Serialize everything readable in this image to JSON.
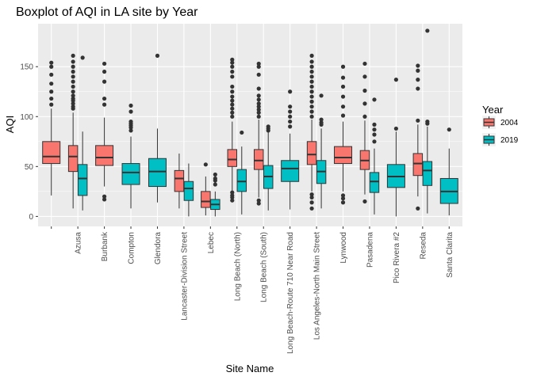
{
  "chart_data": {
    "type": "boxplot",
    "title": "Boxplot of AQI in LA site by Year",
    "xlabel": "Site Name",
    "ylabel": "AQI",
    "ylim": [
      -10,
      193
    ],
    "yticks": [
      0,
      50,
      100,
      150
    ],
    "grid": true,
    "legend": {
      "title": "Year",
      "position": "right"
    },
    "colors": {
      "2004": "#F8766D",
      "2019": "#00BFC4",
      "panel": "#EBEBEB",
      "grid": "#FFFFFF"
    },
    "categories": [
      "",
      "Azusa",
      "Burbank",
      "Compton",
      "Glendora",
      "Lancaster-Division Street",
      "Lebec",
      "Long Beach (North)",
      "Long Beach (South)",
      "Long Beach-Route 710 Near Road",
      "Los Angeles-North Main Street",
      "Lynwood",
      "Pasadena",
      "Pico Rivera #2",
      "Reseda",
      "Santa Clarita"
    ],
    "series": [
      {
        "name": "2004",
        "boxes": [
          {
            "category": 0,
            "min": 21,
            "q1": 53,
            "median": 60,
            "q3": 75,
            "max": 108,
            "outliers": [
              112,
              118,
              125,
              133,
              142,
              150,
              154
            ]
          },
          {
            "category": 1,
            "min": 8,
            "q1": 45,
            "median": 60,
            "q3": 71,
            "max": 104,
            "outliers": [
              108,
              110,
              113,
              116,
              118,
              121,
              125,
              130,
              135,
              140,
              145,
              150,
              155,
              161
            ]
          },
          {
            "category": 2,
            "min": 30,
            "q1": 51,
            "median": 59,
            "q3": 71,
            "max": 99,
            "outliers": [
              17,
              20,
              112,
              118,
              135,
              145,
              153
            ]
          },
          {
            "category": 5,
            "min": 8,
            "q1": 25,
            "median": 38,
            "q3": 46,
            "max": 63,
            "outliers": []
          },
          {
            "category": 6,
            "min": 1,
            "q1": 9,
            "median": 15,
            "q3": 25,
            "max": 40,
            "outliers": [
              52
            ]
          },
          {
            "category": 7,
            "min": 26,
            "q1": 50,
            "median": 57,
            "q3": 67,
            "max": 95,
            "outliers": [
              16,
              19,
              21,
              24,
              100,
              104,
              108,
              112,
              116,
              120,
              125,
              130,
              140,
              145,
              150,
              154,
              157
            ]
          },
          {
            "category": 8,
            "min": 19,
            "q1": 47,
            "median": 56,
            "q3": 67,
            "max": 97,
            "outliers": [
              13,
              16,
              100,
              104,
              107,
              110,
              113,
              117,
              121,
              128,
              142,
              150,
              153
            ]
          },
          {
            "category": 10,
            "min": 25,
            "q1": 52,
            "median": 62,
            "q3": 75,
            "max": 97,
            "outliers": [
              8,
              14,
              19,
              22,
              100,
              105,
              110,
              115,
              120,
              125,
              130,
              135,
              140,
              145,
              150,
              155,
              161
            ]
          },
          {
            "category": 11,
            "min": 25,
            "q1": 53,
            "median": 59,
            "q3": 70,
            "max": 95,
            "outliers": [
              14,
              18,
              21,
              101,
              110,
              120,
              130,
              139,
              150
            ]
          },
          {
            "category": 12,
            "min": 22,
            "q1": 47,
            "median": 56,
            "q3": 66,
            "max": 96,
            "outliers": [
              15,
              100,
              113,
              126,
              140,
              153
            ]
          },
          {
            "category": 14,
            "min": 20,
            "q1": 41,
            "median": 53,
            "q3": 63,
            "max": 92,
            "outliers": [
              8,
              96,
              128,
              137,
              146,
              151
            ]
          }
        ]
      },
      {
        "name": "2019",
        "boxes": [
          {
            "category": 1,
            "min": 6,
            "q1": 21,
            "median": 38,
            "q3": 52,
            "max": 85,
            "outliers": [
              159
            ]
          },
          {
            "category": 3,
            "min": 8,
            "q1": 32,
            "median": 44,
            "q3": 53,
            "max": 80,
            "outliers": [
              86,
              89,
              91,
              93,
              95,
              105,
              111
            ]
          },
          {
            "category": 4,
            "min": 14,
            "q1": 30,
            "median": 45,
            "q3": 58,
            "max": 88,
            "outliers": [
              161
            ]
          },
          {
            "category": 5,
            "min": 0,
            "q1": 16,
            "median": 28,
            "q3": 35,
            "max": 53,
            "outliers": []
          },
          {
            "category": 6,
            "min": 0,
            "q1": 7,
            "median": 12,
            "q3": 17,
            "max": 25,
            "outliers": [
              32,
              36,
              38,
              42
            ]
          },
          {
            "category": 7,
            "min": 2,
            "q1": 25,
            "median": 35,
            "q3": 47,
            "max": 70,
            "outliers": [
              84
            ]
          },
          {
            "category": 8,
            "min": 6,
            "q1": 28,
            "median": 40,
            "q3": 51,
            "max": 84,
            "outliers": [
              86,
              88,
              90
            ]
          },
          {
            "category": 9,
            "min": 7,
            "q1": 35,
            "median": 48,
            "q3": 56,
            "max": 83,
            "outliers": [
              90,
              95,
              100,
              105,
              110,
              125
            ]
          },
          {
            "category": 10,
            "min": 8,
            "q1": 33,
            "median": 45,
            "q3": 56,
            "max": 88,
            "outliers": [
              92,
              94,
              97,
              121
            ]
          },
          {
            "category": 12,
            "min": 2,
            "q1": 24,
            "median": 35,
            "q3": 44,
            "max": 68,
            "outliers": [
              75,
              82,
              87,
              92,
              117
            ]
          },
          {
            "category": 13,
            "min": 0,
            "q1": 29,
            "median": 40,
            "q3": 52,
            "max": 85,
            "outliers": [
              88,
              137
            ]
          },
          {
            "category": 14,
            "min": 3,
            "q1": 31,
            "median": 46,
            "q3": 55,
            "max": 90,
            "outliers": [
              93,
              95,
              186
            ]
          },
          {
            "category": 15,
            "min": 1,
            "q1": 13,
            "median": 25,
            "q3": 38,
            "max": 68,
            "outliers": [
              87
            ]
          }
        ]
      }
    ]
  }
}
